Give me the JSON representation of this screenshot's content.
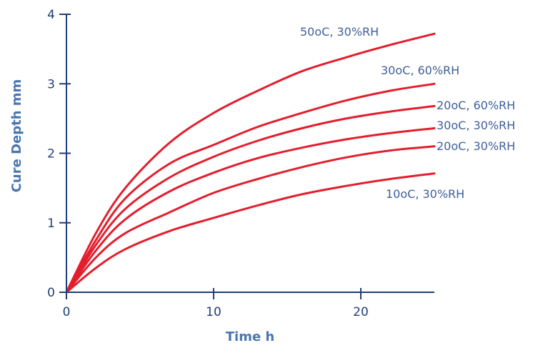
{
  "chart_data": {
    "type": "line",
    "xlabel": "Time h",
    "ylabel": "Cure Depth mm",
    "xlim": [
      0,
      25
    ],
    "ylim": [
      0,
      4
    ],
    "x_ticks": [
      0,
      10,
      20
    ],
    "y_ticks": [
      0,
      1,
      2,
      3,
      4
    ],
    "grid": false,
    "legend": "none",
    "colors": {
      "series": "#e31e2d",
      "axis": "#1f3f79",
      "title": "#4a76b0",
      "label": "#3f5f9a"
    },
    "series": [
      {
        "name": "50oC, 30%RH",
        "x": [
          0,
          2,
          4,
          7,
          10,
          13,
          16,
          19,
          22,
          25
        ],
        "y": [
          0,
          0.85,
          1.5,
          2.15,
          2.58,
          2.9,
          3.18,
          3.38,
          3.56,
          3.72
        ]
      },
      {
        "name": "30oC, 60%RH",
        "x": [
          0,
          2,
          4,
          7,
          10,
          13,
          16,
          19,
          22,
          25
        ],
        "y": [
          0,
          0.75,
          1.35,
          1.85,
          2.12,
          2.38,
          2.58,
          2.76,
          2.9,
          3.0
        ]
      },
      {
        "name": "20oC, 60%RH",
        "x": [
          0,
          2,
          4,
          7,
          10,
          13,
          16,
          19,
          22,
          25
        ],
        "y": [
          0,
          0.68,
          1.2,
          1.65,
          1.95,
          2.18,
          2.36,
          2.5,
          2.6,
          2.68
        ]
      },
      {
        "name": "30oC, 30%RH",
        "x": [
          0,
          2,
          4,
          7,
          10,
          13,
          16,
          19,
          22,
          25
        ],
        "y": [
          0,
          0.6,
          1.05,
          1.45,
          1.72,
          1.93,
          2.08,
          2.2,
          2.29,
          2.36
        ]
      },
      {
        "name": "20oC, 30%RH",
        "x": [
          0,
          2,
          4,
          7,
          10,
          13,
          16,
          19,
          22,
          25
        ],
        "y": [
          0,
          0.5,
          0.85,
          1.15,
          1.43,
          1.63,
          1.8,
          1.94,
          2.04,
          2.1
        ]
      },
      {
        "name": "10oC, 30%RH",
        "x": [
          0,
          2,
          4,
          7,
          10,
          13,
          16,
          19,
          22,
          25
        ],
        "y": [
          0,
          0.35,
          0.62,
          0.88,
          1.07,
          1.25,
          1.41,
          1.53,
          1.63,
          1.71
        ]
      }
    ]
  }
}
